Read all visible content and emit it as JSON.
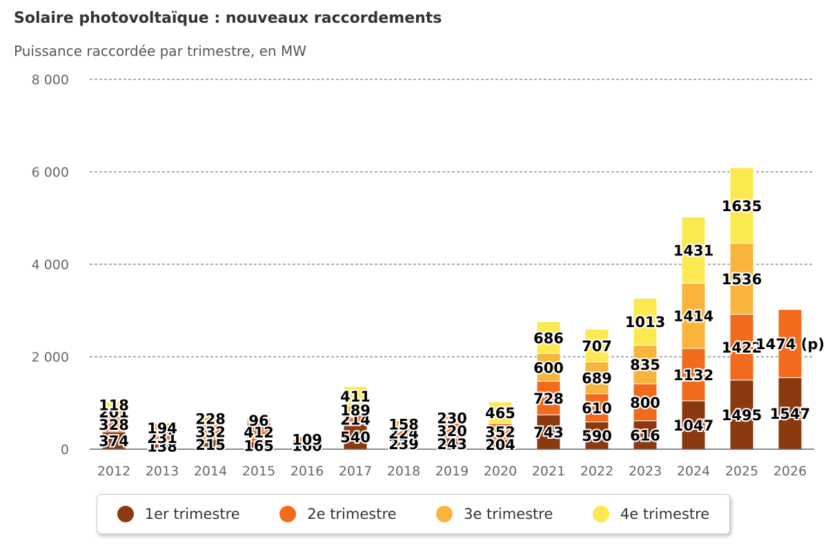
{
  "chart_data": {
    "type": "bar",
    "stacked": true,
    "title": "Solaire photovoltaïque : nouveaux raccordements",
    "subtitle": "Puissance raccordée par trimestre, en MW",
    "categories": [
      "2012",
      "2013",
      "2014",
      "2015",
      "2016",
      "2017",
      "2018",
      "2019",
      "2020",
      "2021",
      "2022",
      "2023",
      "2024",
      "2025",
      "2026"
    ],
    "series": [
      {
        "name": "1er trimestre",
        "color": "#8B3A0F",
        "values": [
          374,
          138,
          215,
          165,
          160,
          540,
          239,
          243,
          204,
          743,
          590,
          616,
          1047,
          1495,
          1547
        ]
      },
      {
        "name": "2e trimestre",
        "color": "#F26B1D",
        "values": [
          328,
          231,
          332,
          412,
          109,
          214,
          224,
          320,
          352,
          728,
          610,
          800,
          1132,
          1422,
          1474
        ]
      },
      {
        "name": "3e trimestre",
        "color": "#F9B43B",
        "values": [
          201,
          194,
          228,
          96,
          0,
          189,
          158,
          230,
          0,
          600,
          689,
          835,
          1414,
          1536,
          0
        ]
      },
      {
        "name": "4e trimestre",
        "color": "#FCE94F",
        "values": [
          118,
          0,
          0,
          0,
          0,
          411,
          0,
          0,
          465,
          686,
          707,
          1013,
          1431,
          1635,
          0
        ]
      }
    ],
    "data_labels": [
      [
        "374",
        "328",
        "201",
        "118"
      ],
      [
        "138",
        "231",
        "194",
        ""
      ],
      [
        "215",
        "332",
        "228",
        ""
      ],
      [
        "165",
        "412",
        "96",
        ""
      ],
      [
        "160",
        "109",
        "",
        ""
      ],
      [
        "540",
        "214",
        "189",
        "411"
      ],
      [
        "239",
        "224",
        "158",
        ""
      ],
      [
        "243",
        "320",
        "230",
        ""
      ],
      [
        "204",
        "352",
        "",
        "465"
      ],
      [
        "743",
        "728",
        "600",
        "686"
      ],
      [
        "590",
        "610",
        "689",
        "707"
      ],
      [
        "616",
        "800",
        "835",
        "1013"
      ],
      [
        "1047",
        "1132",
        "1414",
        "1431"
      ],
      [
        "1495",
        "1422",
        "1536",
        "1635"
      ],
      [
        "1547",
        "1474 (p)",
        "",
        ""
      ]
    ],
    "yticks": [
      "0",
      "2 000",
      "4 000",
      "6 000",
      "8 000"
    ],
    "ytick_values": [
      0,
      2000,
      4000,
      6000,
      8000
    ],
    "ylim": [
      0,
      8000
    ],
    "grid": true,
    "legend_position": "bottom"
  }
}
